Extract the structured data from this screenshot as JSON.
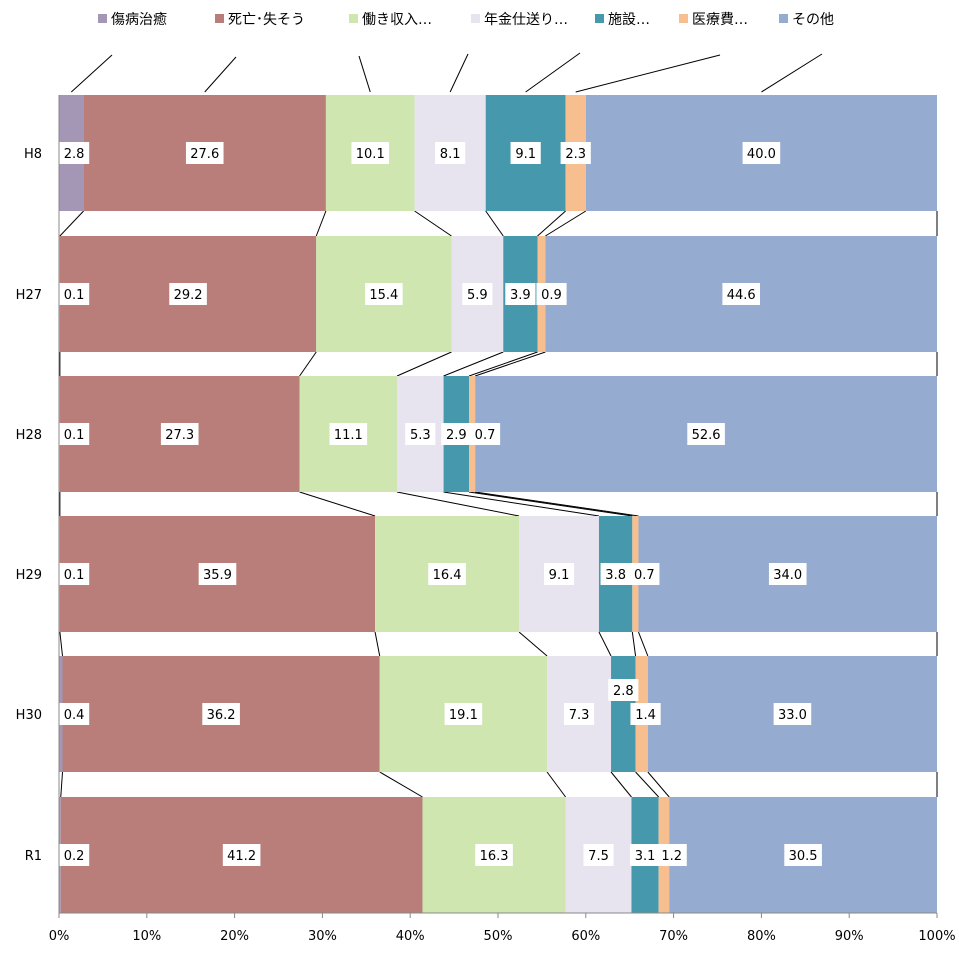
{
  "chart_data": {
    "type": "bar",
    "orientation": "horizontal",
    "stacked": "percent",
    "categories": [
      "H8",
      "H27",
      "H28",
      "H29",
      "H30",
      "R1"
    ],
    "series": [
      {
        "name": "傷病治癒",
        "color": "#a497b5",
        "values": [
          2.8,
          0.1,
          0.1,
          0.1,
          0.4,
          0.2
        ]
      },
      {
        "name": "死亡･失そう",
        "color": "#b97e7a",
        "values": [
          27.6,
          29.2,
          27.3,
          35.9,
          36.2,
          41.2
        ]
      },
      {
        "name": "働き収入…",
        "color": "#cfe6b1",
        "values": [
          10.1,
          15.4,
          11.1,
          16.4,
          19.1,
          16.3
        ]
      },
      {
        "name": "年金仕送り…",
        "color": "#e7e3ef",
        "values": [
          8.1,
          5.9,
          5.3,
          9.1,
          7.3,
          7.5
        ]
      },
      {
        "name": "施設…",
        "color": "#4699ad",
        "values": [
          9.1,
          3.9,
          2.9,
          3.8,
          2.8,
          3.1
        ]
      },
      {
        "name": "医療費…",
        "color": "#f7bf8f",
        "values": [
          2.3,
          0.9,
          0.7,
          0.7,
          1.4,
          1.2
        ]
      },
      {
        "name": "その他",
        "color": "#95abd0",
        "values": [
          40.0,
          44.6,
          52.6,
          34.0,
          33.0,
          30.5
        ]
      }
    ],
    "data_labels": [
      [
        "2.8",
        "27.6",
        "10.1",
        "8.1",
        "9.1",
        "2.3",
        "40.0"
      ],
      [
        "0.1",
        "29.2",
        "15.4",
        "5.9",
        "3.9",
        "0.9",
        "44.6"
      ],
      [
        "0.1",
        "27.3",
        "11.1",
        "5.3",
        "2.9",
        "0.7",
        "52.6"
      ],
      [
        "0.1",
        "35.9",
        "16.4",
        "9.1",
        "3.8",
        "0.7",
        "34.0"
      ],
      [
        "0.4",
        "36.2",
        "19.1",
        "7.3",
        "2.8",
        "1.4",
        "33.0"
      ],
      [
        "0.2",
        "41.2",
        "16.3",
        "7.5",
        "3.1",
        "1.2",
        "30.5"
      ]
    ],
    "x_ticks": [
      "0%",
      "10%",
      "20%",
      "30%",
      "40%",
      "50%",
      "60%",
      "70%",
      "80%",
      "90%",
      "100%"
    ],
    "xlim": [
      0,
      100
    ],
    "legend_position": "top",
    "series_lines": true,
    "title": "",
    "xlabel": "",
    "ylabel": ""
  }
}
